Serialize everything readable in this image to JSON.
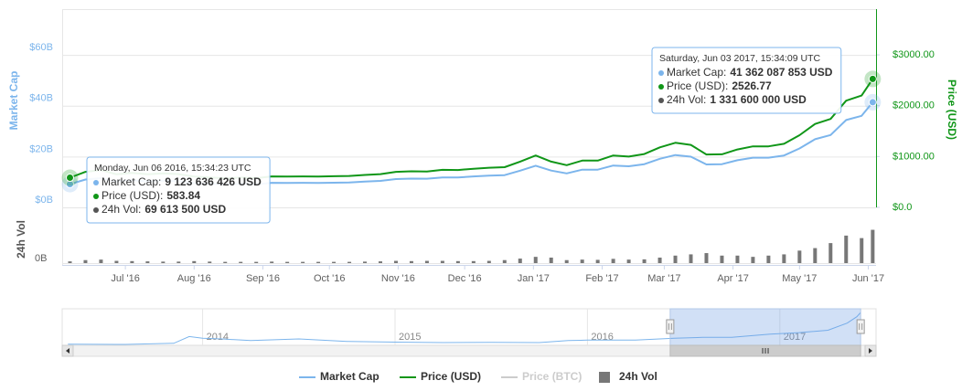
{
  "chart_data": {
    "type": "line",
    "x": [
      5,
      12,
      19,
      26,
      33,
      40,
      47,
      54,
      61,
      68,
      75,
      82,
      89,
      96,
      103,
      110,
      117,
      124,
      131,
      138,
      145,
      152,
      159,
      166,
      173,
      180,
      187,
      194,
      201,
      208,
      215,
      222,
      229,
      236,
      243,
      250,
      257,
      264,
      271,
      278,
      285,
      292,
      299,
      306,
      313,
      320,
      327,
      334,
      341,
      348,
      355,
      362,
      367
    ],
    "xlim": [
      1.5,
      368.5
    ],
    "xticks": [
      {
        "value": 30,
        "label": "Jul '16"
      },
      {
        "value": 61,
        "label": "Aug '16"
      },
      {
        "value": 92,
        "label": "Sep '16"
      },
      {
        "value": 122,
        "label": "Oct '16"
      },
      {
        "value": 153,
        "label": "Nov '16"
      },
      {
        "value": 183,
        "label": "Dec '16"
      },
      {
        "value": 214,
        "label": "Jan '17"
      },
      {
        "value": 245,
        "label": "Feb '17"
      },
      {
        "value": 273,
        "label": "Mar '17"
      },
      {
        "value": 304,
        "label": "Apr '17"
      },
      {
        "value": 334,
        "label": "May '17"
      },
      {
        "value": 365,
        "label": "Jun '17"
      }
    ],
    "ylabel": "Market Cap",
    "ylim": [
      0,
      78
    ],
    "yticks": [
      {
        "value": 0,
        "label": "$0B"
      },
      {
        "value": 20,
        "label": "$20B"
      },
      {
        "value": 40,
        "label": "$40B"
      },
      {
        "value": 60,
        "label": "$60B"
      }
    ],
    "y2label": "Price (USD)",
    "y2lim": [
      0,
      3900
    ],
    "y2ticks": [
      {
        "value": 0,
        "label": "$0.0"
      },
      {
        "value": 1000,
        "label": "$1000.00"
      },
      {
        "value": 2000,
        "label": "$2000.00"
      },
      {
        "value": 3000,
        "label": "$3000.00"
      }
    ],
    "vol_ylabel": "24h Vol",
    "vol_ylim": [
      0,
      1.9
    ],
    "vol_yticks": [
      {
        "value": 0,
        "label": "0B"
      }
    ],
    "grid": true,
    "series": [
      {
        "name": "Market Cap",
        "color": "#7cb5ec",
        "axis": "y",
        "values": [
          9.123636426,
          10.96,
          11.51,
          10.19,
          10.67,
          10.21,
          10.53,
          10.31,
          9.53,
          9.3,
          8.99,
          9.24,
          9.09,
          9.66,
          9.63,
          9.67,
          9.6,
          9.72,
          9.83,
          10.16,
          10.43,
          11.16,
          11.33,
          11.27,
          11.8,
          11.77,
          12.18,
          12.5,
          12.68,
          14.45,
          16.4,
          14.48,
          13.37,
          14.83,
          14.85,
          16.47,
          16.17,
          16.99,
          19.12,
          20.59,
          19.96,
          16.89,
          16.99,
          18.55,
          19.55,
          19.56,
          20.4,
          23.19,
          26.81,
          28.47,
          34.38,
          36.01,
          41.362087853
        ]
      },
      {
        "name": "Price (USD)",
        "color": "#109618",
        "axis": "y2",
        "values": [
          583.84,
          700,
          735,
          650,
          680,
          650,
          670,
          655,
          605,
          590,
          570,
          585,
          575,
          610,
          608,
          610,
          605,
          612,
          618,
          638,
          655,
          700,
          710,
          705,
          738,
          735,
          760,
          780,
          790,
          900,
          1020,
          900,
          830,
          920,
          920,
          1020,
          1000,
          1050,
          1180,
          1270,
          1230,
          1040,
          1045,
          1140,
          1200,
          1200,
          1250,
          1420,
          1640,
          1740,
          2100,
          2200,
          2526.77
        ]
      },
      {
        "name": "Price (BTC)",
        "color": "#cccccc",
        "visible": false
      },
      {
        "name": "24h Vol",
        "color": "#777777",
        "axis": "volume",
        "type": "bar",
        "values": [
          0.0696135,
          0.12,
          0.14,
          0.09,
          0.08,
          0.07,
          0.06,
          0.06,
          0.08,
          0.06,
          0.05,
          0.05,
          0.05,
          0.06,
          0.05,
          0.05,
          0.05,
          0.05,
          0.05,
          0.06,
          0.07,
          0.09,
          0.08,
          0.09,
          0.09,
          0.08,
          0.08,
          0.09,
          0.12,
          0.18,
          0.25,
          0.22,
          0.12,
          0.14,
          0.13,
          0.17,
          0.14,
          0.15,
          0.22,
          0.3,
          0.35,
          0.4,
          0.3,
          0.3,
          0.25,
          0.3,
          0.35,
          0.5,
          0.6,
          0.8,
          1.1,
          1.0,
          1.3316
        ]
      }
    ],
    "tooltips": [
      {
        "title": "Monday, Jun 06 2016, 15:34:23 UTC",
        "rows": [
          {
            "label": "Market Cap:",
            "value": "9 123 636 426 USD"
          },
          {
            "label": "Price (USD):",
            "value": "583.84"
          },
          {
            "label": "24h Vol:",
            "value": "69 613 500 USD"
          }
        ]
      },
      {
        "title": "Saturday, Jun 03 2017, 15:34:09 UTC",
        "rows": [
          {
            "label": "Market Cap:",
            "value": "41 362 087 853 USD"
          },
          {
            "label": "Price (USD):",
            "value": "2526.77"
          },
          {
            "label": "24h Vol:",
            "value": "1 331 600 000 USD"
          }
        ]
      }
    ],
    "navigator": {
      "x": [
        2013.3,
        2013.6,
        2013.85,
        2013.93,
        2014.0,
        2014.1,
        2014.25,
        2014.5,
        2014.75,
        2015.0,
        2015.25,
        2015.5,
        2015.75,
        2015.9,
        2016.0,
        2016.25,
        2016.45,
        2016.6,
        2016.75,
        2016.95,
        2017.1,
        2017.25,
        2017.35,
        2017.4,
        2017.42
      ],
      "values": [
        1.5,
        1.2,
        2.5,
        11,
        9,
        8,
        6,
        8,
        5,
        4,
        3.4,
        3.8,
        3.5,
        6,
        6.5,
        6.5,
        9,
        10,
        10,
        14,
        16,
        19,
        28,
        36,
        41.36
      ],
      "xlim": [
        2013.27,
        2017.5
      ],
      "xticks": [
        2014,
        2015,
        2016,
        2017
      ],
      "ylim": [
        0,
        46
      ],
      "range": [
        2016.43,
        2017.42
      ]
    }
  }
}
